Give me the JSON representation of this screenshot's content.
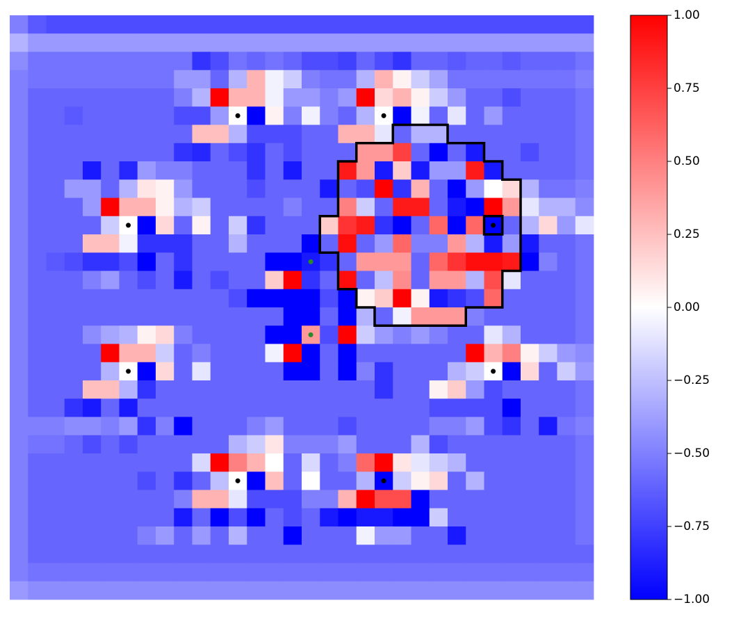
{
  "chart_data": {
    "type": "heatmap",
    "colormap": "bwr",
    "clim": [
      -1,
      1
    ],
    "cticks": [
      {
        "value": 1,
        "label": "1.00"
      },
      {
        "value": 0.75,
        "label": "0.75"
      },
      {
        "value": 0.5,
        "label": "0.50"
      },
      {
        "value": 0.25,
        "label": "0.25"
      },
      {
        "value": 0,
        "label": "0.00"
      },
      {
        "value": -0.25,
        "label": "−0.25"
      },
      {
        "value": -0.5,
        "label": "−0.50"
      },
      {
        "value": -0.75,
        "label": "−0.75"
      },
      {
        "value": -1,
        "label": "−1.00"
      }
    ],
    "values": [
      [
        -0.5,
        -0.65,
        -0.7,
        -0.7,
        -0.7,
        -0.7,
        -0.7,
        -0.7,
        -0.7,
        -0.7,
        -0.7,
        -0.7,
        -0.7,
        -0.7,
        -0.7,
        -0.7,
        -0.7,
        -0.7,
        -0.7,
        -0.7,
        -0.7,
        -0.7,
        -0.7,
        -0.7,
        -0.7,
        -0.7,
        -0.7,
        -0.7,
        -0.7,
        -0.7,
        -0.7,
        -0.7
      ],
      [
        -0.3,
        -0.4,
        -0.4,
        -0.4,
        -0.4,
        -0.4,
        -0.4,
        -0.4,
        -0.4,
        -0.4,
        -0.4,
        -0.4,
        -0.4,
        -0.4,
        -0.4,
        -0.4,
        -0.4,
        -0.4,
        -0.4,
        -0.4,
        -0.4,
        -0.4,
        -0.4,
        -0.4,
        -0.4,
        -0.4,
        -0.4,
        -0.4,
        -0.4,
        -0.4,
        -0.4,
        -0.4
      ],
      [
        -0.45,
        -0.55,
        -0.55,
        -0.55,
        -0.55,
        -0.55,
        -0.55,
        -0.55,
        -0.55,
        -0.55,
        -0.8,
        -0.7,
        -0.55,
        -0.6,
        -0.55,
        -0.6,
        -0.7,
        -0.7,
        -0.75,
        -0.6,
        -0.7,
        -0.8,
        -0.6,
        -0.6,
        -0.65,
        -0.6,
        -0.6,
        -0.65,
        -0.6,
        -0.6,
        -0.6,
        -0.55
      ],
      [
        -0.5,
        -0.55,
        -0.55,
        -0.55,
        -0.55,
        -0.55,
        -0.55,
        -0.55,
        -0.55,
        -0.4,
        -0.4,
        -0.6,
        -0.3,
        0.3,
        -0.05,
        -0.2,
        -0.5,
        -0.55,
        -0.55,
        -0.3,
        0.3,
        0.05,
        -0.2,
        -0.35,
        -0.55,
        -0.55,
        -0.55,
        -0.55,
        -0.55,
        -0.55,
        -0.55,
        -0.5
      ],
      [
        -0.5,
        -0.6,
        -0.6,
        -0.6,
        -0.6,
        -0.6,
        -0.6,
        -0.6,
        -0.6,
        -0.5,
        -0.3,
        1.0,
        0.3,
        0.3,
        -0.05,
        -0.4,
        -0.4,
        -0.5,
        -0.4,
        1.0,
        0.15,
        0.3,
        0.05,
        -0.2,
        -0.4,
        -0.6,
        -0.6,
        -0.7,
        -0.6,
        -0.6,
        -0.6,
        -0.55
      ],
      [
        -0.5,
        -0.6,
        -0.6,
        -0.65,
        -0.6,
        -0.6,
        -0.6,
        -0.6,
        -0.6,
        -0.7,
        -0.7,
        -0.4,
        0,
        -1,
        0.05,
        -0.5,
        -0.05,
        -0.5,
        -0.6,
        -0.3,
        0,
        -1,
        -0.05,
        -0.6,
        -0.1,
        -0.6,
        -0.4,
        -0.6,
        -0.6,
        -0.6,
        -0.6,
        -0.55
      ],
      [
        -0.5,
        -0.6,
        -0.6,
        -0.6,
        -0.6,
        -0.6,
        -0.6,
        -0.6,
        -0.6,
        -0.6,
        0.25,
        0.25,
        -0.3,
        -0.7,
        -0.7,
        -0.7,
        -0.6,
        -0.6,
        0.3,
        0.3,
        -0.1,
        -0.6,
        -0.3,
        -0.3,
        -0.6,
        -0.6,
        -0.6,
        -0.6,
        -0.6,
        -0.6,
        -0.6,
        -0.55
      ],
      [
        -0.5,
        -0.6,
        -0.6,
        -0.6,
        -0.6,
        -0.6,
        -0.6,
        -0.6,
        -0.6,
        -0.8,
        -0.85,
        -0.6,
        -0.7,
        -0.8,
        -0.6,
        -0.7,
        -0.6,
        -0.6,
        -0.6,
        0.4,
        0.4,
        0.75,
        -0.6,
        -1,
        -0.6,
        -0.9,
        -0.6,
        -0.6,
        -0.7,
        -0.6,
        -0.6,
        -0.55
      ],
      [
        -0.5,
        -0.6,
        -0.6,
        -0.6,
        -0.9,
        -0.6,
        -0.85,
        -0.4,
        -0.5,
        -0.5,
        -0.6,
        -0.6,
        -0.6,
        -0.8,
        -0.6,
        -0.9,
        -0.6,
        -0.6,
        0.9,
        0.4,
        -0.9,
        0.2,
        -0.9,
        -0.4,
        -0.4,
        0.9,
        -0.9,
        -0.6,
        -0.6,
        -0.6,
        -0.6,
        -0.55
      ],
      [
        -0.5,
        -0.6,
        -0.6,
        -0.4,
        -0.4,
        -0.6,
        -0.3,
        0.1,
        0.05,
        -0.4,
        -0.6,
        -0.6,
        -0.6,
        -0.7,
        -0.6,
        -0.6,
        -0.6,
        -0.9,
        -0.6,
        -0.7,
        1.0,
        -0.8,
        0.3,
        -0.6,
        -1,
        -0.4,
        0,
        0.15,
        -0.3,
        -0.55,
        -0.55,
        -0.5
      ],
      [
        -0.5,
        -0.6,
        -0.6,
        -0.6,
        -0.4,
        1.0,
        0.3,
        0.3,
        0.05,
        -0.3,
        -0.2,
        -0.6,
        -0.6,
        -0.6,
        -0.6,
        -0.5,
        -0.6,
        -0.6,
        0.5,
        -0.2,
        -0.6,
        0.9,
        0.9,
        -0.6,
        -0.9,
        -1,
        1.0,
        0.4,
        -0.1,
        -0.3,
        -0.3,
        -0.45
      ],
      [
        -0.5,
        -0.6,
        -0.6,
        -0.6,
        -0.6,
        -0.2,
        0,
        -1,
        0.15,
        -0.6,
        0.05,
        -0.6,
        -0.2,
        -0.8,
        -0.6,
        -0.6,
        -0.6,
        0.2,
        0.8,
        0.9,
        -0.8,
        -1,
        -0.6,
        0.6,
        -1,
        0.6,
        -1,
        -0.6,
        -0.3,
        0.15,
        -0.4,
        -0.1
      ],
      [
        -0.5,
        -0.6,
        -0.6,
        -0.6,
        0.25,
        0.25,
        -0.05,
        -0.8,
        -0.8,
        -0.8,
        -0.6,
        -0.6,
        -0.3,
        -0.6,
        -0.6,
        -0.6,
        -1,
        -0.6,
        0.95,
        -0.6,
        -0.4,
        0.6,
        -0.5,
        -0.5,
        0.4,
        -0.3,
        -0.9,
        -0.4,
        -0.9,
        -0.6,
        -0.6,
        -0.55
      ],
      [
        -0.5,
        -0.6,
        -0.65,
        -0.7,
        -0.8,
        -0.8,
        -0.7,
        -1,
        -0.6,
        -0.8,
        -0.6,
        -0.6,
        -0.6,
        -0.6,
        -1,
        -1,
        -0.9,
        -0.8,
        -0.6,
        0.4,
        0.4,
        0.4,
        -0.6,
        0.6,
        0.8,
        0.95,
        0.95,
        0.9,
        -1,
        -0.5,
        -0.6,
        -0.55
      ],
      [
        -0.5,
        -0.6,
        -0.6,
        -0.6,
        -0.5,
        -0.4,
        -0.6,
        -0.7,
        -0.6,
        -0.9,
        -0.6,
        -0.7,
        -0.6,
        -0.6,
        0.2,
        1.0,
        -0.8,
        -0.6,
        0.95,
        -0.6,
        -0.25,
        0.45,
        -0.6,
        0.4,
        0.4,
        -0.3,
        0.7,
        -0.1,
        -0.6,
        -0.6,
        -0.6,
        -0.55
      ],
      [
        -0.5,
        -0.6,
        -0.6,
        -0.6,
        -0.6,
        -0.6,
        -0.6,
        -0.6,
        -0.6,
        -0.6,
        -0.6,
        -0.6,
        -0.7,
        -1,
        -1,
        -1,
        -1,
        -0.7,
        -1,
        0.05,
        0.2,
        1.0,
        0.05,
        -0.9,
        -0.8,
        -0.7,
        0.6,
        -0.6,
        -0.6,
        -0.6,
        -0.6,
        -0.55
      ],
      [
        -0.5,
        -0.6,
        -0.6,
        -0.6,
        -0.6,
        -0.6,
        -0.6,
        -0.6,
        -0.6,
        -0.6,
        -0.6,
        -0.6,
        -0.6,
        -0.6,
        -0.6,
        -1,
        -1,
        -0.6,
        -1,
        -0.3,
        -0.6,
        -0.05,
        0.4,
        0.4,
        0.4,
        -0.5,
        -0.6,
        -0.6,
        -0.6,
        -0.6,
        -0.6,
        -0.55
      ],
      [
        -0.5,
        -0.6,
        -0.6,
        -0.6,
        -0.45,
        -0.35,
        -0.3,
        0.05,
        0.15,
        -0.5,
        -0.6,
        -0.6,
        -0.6,
        -0.6,
        -1,
        -1,
        0.4,
        -0.7,
        1.0,
        -0.2,
        -0.4,
        -0.5,
        -0.4,
        -0.5,
        -0.6,
        -0.6,
        -0.1,
        -0.3,
        -0.6,
        -0.6,
        -0.6,
        -0.55
      ],
      [
        -0.5,
        -0.6,
        -0.6,
        -0.6,
        -0.6,
        1.0,
        0.3,
        0.3,
        -0.2,
        -0.6,
        -0.5,
        -0.6,
        -0.6,
        -0.6,
        -0.05,
        1.0,
        -1,
        -0.6,
        -1,
        -0.6,
        -0.6,
        -0.6,
        -0.6,
        -0.6,
        -0.6,
        1.0,
        0.3,
        0.5,
        0.05,
        -0.2,
        -0.4,
        -0.45
      ],
      [
        -0.5,
        -0.6,
        -0.6,
        -0.6,
        -0.6,
        -0.3,
        0,
        -1,
        0.15,
        -0.6,
        -0.1,
        -0.6,
        -0.6,
        -0.6,
        -0.6,
        -1,
        -1,
        -0.6,
        -1,
        -0.5,
        -0.8,
        -0.6,
        -0.6,
        -0.6,
        -0.3,
        -0.2,
        0,
        -1,
        0.15,
        -0.6,
        -0.2,
        -0.4
      ],
      [
        -0.5,
        -0.6,
        -0.6,
        -0.6,
        0.25,
        0.25,
        -0.3,
        -0.8,
        -0.6,
        -0.6,
        -0.6,
        -0.6,
        -0.6,
        -0.6,
        -0.6,
        -0.6,
        -0.6,
        -0.6,
        -0.6,
        -0.6,
        -0.8,
        -0.6,
        -0.6,
        0.05,
        0.2,
        -0.4,
        -0.7,
        -0.6,
        -0.6,
        -0.6,
        -0.6,
        -0.55
      ],
      [
        -0.5,
        -0.6,
        -0.6,
        -0.8,
        -0.9,
        -0.6,
        -0.9,
        -0.6,
        -0.6,
        -0.6,
        -0.6,
        -0.6,
        -0.6,
        -0.6,
        -0.6,
        -0.6,
        -0.6,
        -0.6,
        -0.6,
        -0.6,
        -0.6,
        -0.6,
        -0.6,
        -0.7,
        -0.7,
        -0.7,
        -0.7,
        -1,
        -0.6,
        -0.6,
        -0.6,
        -0.55
      ],
      [
        -0.5,
        -0.5,
        -0.5,
        -0.45,
        -0.45,
        -0.5,
        -0.4,
        -0.8,
        -0.5,
        -1,
        -0.6,
        -0.6,
        -0.6,
        -0.5,
        -0.4,
        -0.6,
        -0.6,
        -0.6,
        -0.7,
        -0.6,
        -0.6,
        -0.6,
        -0.6,
        -0.5,
        -0.5,
        -0.4,
        -0.7,
        -0.8,
        -0.6,
        -0.9,
        -0.55,
        -0.5
      ],
      [
        -0.5,
        -0.55,
        -0.55,
        -0.6,
        -0.7,
        -0.6,
        -0.7,
        -0.6,
        -0.6,
        -0.6,
        -0.6,
        -0.6,
        -0.3,
        -0.2,
        0.1,
        -0.5,
        -0.5,
        -0.5,
        -0.4,
        -0.6,
        -0.6,
        -0.6,
        -0.3,
        -0.7,
        -0.6,
        -0.6,
        -0.6,
        -0.6,
        -0.6,
        -0.6,
        -0.6,
        -0.55
      ],
      [
        -0.5,
        -0.6,
        -0.6,
        -0.6,
        -0.6,
        -0.6,
        -0.6,
        -0.6,
        -0.6,
        -0.6,
        -0.15,
        1.0,
        0.5,
        0.3,
        0,
        -0.6,
        -0.15,
        -0.6,
        -0.5,
        0.6,
        1.0,
        0.1,
        -0.1,
        -0.2,
        -0.3,
        -0.6,
        -0.6,
        -0.6,
        -0.6,
        -0.6,
        -0.6,
        -0.55
      ],
      [
        -0.5,
        -0.6,
        -0.6,
        -0.6,
        -0.6,
        -0.6,
        -0.6,
        -0.7,
        -0.6,
        -0.8,
        -0.6,
        -0.25,
        0,
        -1,
        0.25,
        -0.6,
        0,
        -0.6,
        -0.6,
        -0.3,
        -1,
        -0.2,
        0.05,
        0.15,
        -0.6,
        -0.3,
        -0.6,
        -0.6,
        -0.6,
        -0.6,
        -0.6,
        -0.55
      ],
      [
        -0.5,
        -0.6,
        -0.6,
        -0.6,
        -0.6,
        -0.6,
        -0.6,
        -0.6,
        -0.6,
        -0.5,
        0.3,
        0.3,
        -0.1,
        -0.7,
        -0.7,
        -0.7,
        -0.5,
        -0.5,
        0.3,
        1.0,
        0.7,
        0.7,
        -1,
        -0.6,
        -0.6,
        -0.6,
        -0.6,
        -0.6,
        -0.6,
        -0.6,
        -0.6,
        -0.55
      ],
      [
        -0.5,
        -0.6,
        -0.6,
        -0.6,
        -0.6,
        -0.6,
        -0.6,
        -0.6,
        -0.6,
        -0.9,
        -0.6,
        -1,
        -0.7,
        -1,
        -0.6,
        -0.7,
        -0.6,
        -0.9,
        -1,
        -0.9,
        -0.9,
        -1,
        -1,
        -0.2,
        -0.6,
        -0.6,
        -0.6,
        -0.6,
        -0.6,
        -0.6,
        -0.6,
        -0.55
      ],
      [
        -0.5,
        -0.6,
        -0.6,
        -0.6,
        -0.6,
        -0.6,
        -0.6,
        -0.5,
        -0.4,
        -0.6,
        -0.4,
        -0.6,
        -0.3,
        -0.6,
        -0.6,
        -1,
        -0.6,
        -0.6,
        -0.6,
        -0.05,
        -0.4,
        -0.4,
        -0.6,
        -0.6,
        -0.9,
        -0.6,
        -0.6,
        -0.6,
        -0.6,
        -0.6,
        -0.6,
        -0.55
      ],
      [
        -0.5,
        -0.6,
        -0.6,
        -0.6,
        -0.6,
        -0.6,
        -0.6,
        -0.6,
        -0.6,
        -0.6,
        -0.6,
        -0.6,
        -0.6,
        -0.6,
        -0.6,
        -0.6,
        -0.6,
        -0.6,
        -0.6,
        -0.6,
        -0.6,
        -0.6,
        -0.6,
        -0.6,
        -0.6,
        -0.6,
        -0.6,
        -0.6,
        -0.6,
        -0.6,
        -0.6,
        -0.6
      ],
      [
        -0.5,
        -0.55,
        -0.55,
        -0.55,
        -0.55,
        -0.55,
        -0.55,
        -0.55,
        -0.55,
        -0.55,
        -0.55,
        -0.55,
        -0.55,
        -0.55,
        -0.55,
        -0.55,
        -0.55,
        -0.55,
        -0.55,
        -0.55,
        -0.55,
        -0.55,
        -0.55,
        -0.55,
        -0.55,
        -0.55,
        -0.55,
        -0.55,
        -0.55,
        -0.55,
        -0.55,
        -0.55
      ],
      [
        -0.4,
        -0.45,
        -0.45,
        -0.45,
        -0.45,
        -0.45,
        -0.45,
        -0.45,
        -0.45,
        -0.45,
        -0.45,
        -0.45,
        -0.45,
        -0.45,
        -0.45,
        -0.45,
        -0.45,
        -0.45,
        -0.45,
        -0.45,
        -0.45,
        -0.45,
        -0.45,
        -0.45,
        -0.45,
        -0.45,
        -0.45,
        -0.45,
        -0.45,
        -0.45,
        -0.45,
        -0.45
      ]
    ]
  }
}
